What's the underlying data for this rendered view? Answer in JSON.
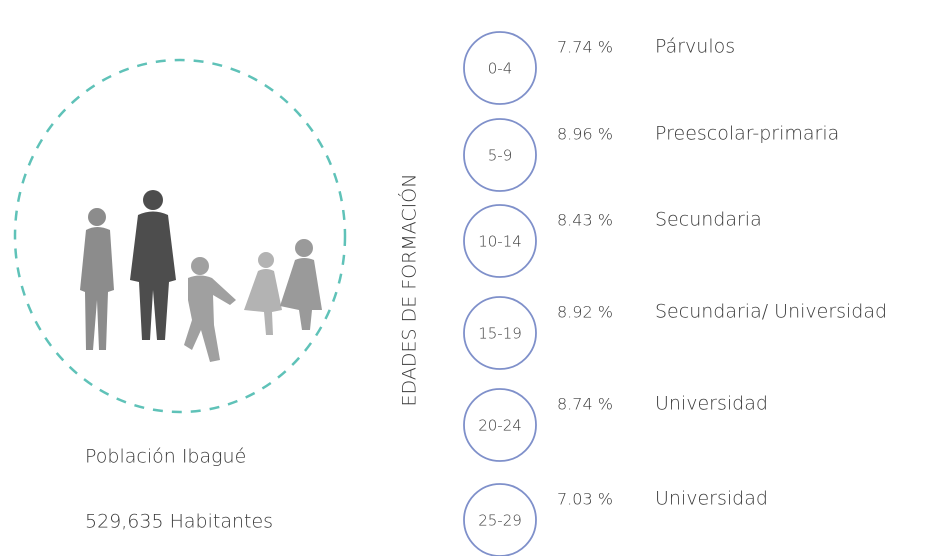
{
  "caption": {
    "title": "Población Ibagué",
    "population": "529,635 Habitantes"
  },
  "axis_label": "EDADES DE FORMACIÓN",
  "groups": [
    {
      "range": "0-4",
      "percent": "7.74 %",
      "level": "Párvulos"
    },
    {
      "range": "5-9",
      "percent": "8.96 %",
      "level": "Preescolar-primaria"
    },
    {
      "range": "10-14",
      "percent": "8.43 %",
      "level": "Secundaria"
    },
    {
      "range": "15-19",
      "percent": "8.92 %",
      "level": "Secundaria/ Universidad"
    },
    {
      "range": "20-24",
      "percent": "8.74 %",
      "level": "Universidad"
    },
    {
      "range": "25-29",
      "percent": "7.03 %",
      "level": "Universidad"
    }
  ]
}
